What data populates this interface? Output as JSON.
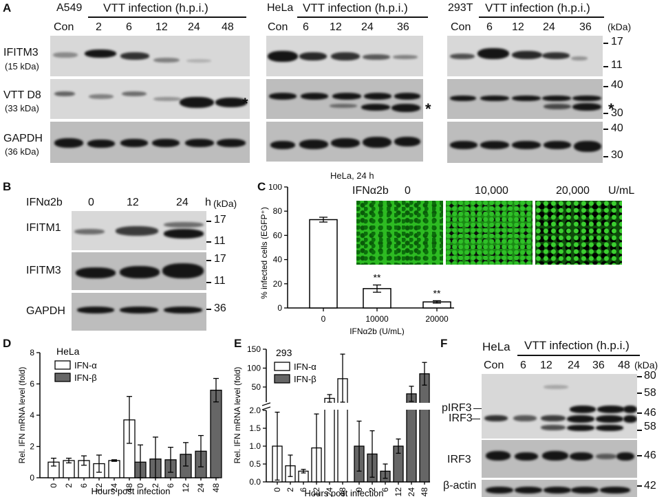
{
  "panel_letters": [
    "A",
    "B",
    "C",
    "D",
    "E",
    "F"
  ],
  "panelA": {
    "groups": [
      {
        "cell": "A549",
        "header": "VTT infection (h.p.i.)",
        "lanes": [
          "Con",
          "2",
          "6",
          "12",
          "24",
          "48"
        ]
      },
      {
        "cell": "HeLa",
        "header": "VTT infection (h.p.i.)",
        "lanes": [
          "Con",
          "6",
          "12",
          "24",
          "36"
        ]
      },
      {
        "cell": "293T",
        "header": "VTT infection (h.p.i.)",
        "lanes": [
          "Con",
          "6",
          "12",
          "24",
          "36"
        ]
      }
    ],
    "kda_unit": "(kDa)",
    "rows": [
      {
        "name": "IFITM3",
        "size": "(15 kDa)"
      },
      {
        "name": "VTT D8",
        "size": "(33 kDa)"
      },
      {
        "name": "GAPDH",
        "size": "(36 kDa)"
      }
    ],
    "markers": [
      "17",
      "11",
      "40",
      "30",
      "40",
      "30"
    ],
    "asterisk": "*"
  },
  "panelB": {
    "treatment": "IFNα2b",
    "lanes": [
      "0",
      "12",
      "24"
    ],
    "unit": "h",
    "kda_unit": "(kDa)",
    "rows": [
      "IFITM1",
      "IFITM3",
      "GAPDH"
    ],
    "markers": [
      "17",
      "11",
      "17",
      "11",
      "36"
    ]
  },
  "panelC": {
    "title": "HeLa, 24 h",
    "ylabel": "% infected cells (EGFP⁺)",
    "xlabel": "IFNα2b (U/mL)",
    "image_header_label": "IFNα2b",
    "image_doses": [
      "0",
      "10,000",
      "20,000"
    ],
    "image_unit": "U/mL",
    "sig": [
      "**",
      "**"
    ],
    "ytick_labels": [
      "0",
      "20",
      "40",
      "60",
      "80",
      "100"
    ]
  },
  "panelD": {
    "cell": "HeLa",
    "ylabel": "Rel. IFN mRNA level (fold)",
    "xlabel": "Hours post infection",
    "legend": [
      "IFN-α",
      "IFN-β"
    ],
    "ytick_labels": [
      "0",
      "2",
      "4",
      "6",
      "8"
    ],
    "xtick_labels": [
      "0",
      "2",
      "6",
      "12",
      "24",
      "48"
    ]
  },
  "panelE": {
    "cell": "293",
    "ylabel": "Rel. IFN mRNA level (fold)",
    "xlabel": "Hours post infection",
    "legend": [
      "IFN-α",
      "IFN-β"
    ],
    "ytick_labels_upper": [
      "50",
      "100",
      "150"
    ],
    "ytick_labels_lower": [
      "0.0",
      "0.5",
      "1.0",
      "1.5",
      "2.0"
    ],
    "xtick_labels": [
      "0",
      "2",
      "6",
      "12",
      "24",
      "48"
    ]
  },
  "panelF": {
    "cell": "HeLa",
    "header": "VTT infection (h.p.i.)",
    "lanes": [
      "Con",
      "6",
      "12",
      "24",
      "36",
      "48"
    ],
    "kda_unit": "(kDa)",
    "rows": [
      "pIRF3",
      "IRF3",
      "IRF3",
      "β-actin"
    ],
    "markers": [
      "80",
      "58",
      "46",
      "58",
      "46",
      "42"
    ]
  },
  "chart_data": [
    {
      "type": "bar",
      "categories": [
        "0",
        "10000",
        "20000"
      ],
      "values": [
        73,
        16,
        5
      ],
      "errors": [
        2,
        3,
        1
      ],
      "ylim": [
        0,
        100
      ],
      "ylabel": "% infected cells (EGFP⁺)",
      "xlabel": "IFNα2b (U/mL)",
      "title": "HeLa, 24 h",
      "colors": {
        "bar": "#ffffff",
        "edge": "#000000"
      }
    },
    {
      "type": "bar",
      "categories": [
        "0",
        "2",
        "6",
        "12",
        "24",
        "48"
      ],
      "series": [
        {
          "name": "IFN-α",
          "values": [
            1.0,
            1.1,
            1.1,
            0.9,
            1.1,
            3.7
          ],
          "errors": [
            0.25,
            0.15,
            0.3,
            0.55,
            0.05,
            1.5
          ]
        },
        {
          "name": "IFN-β",
          "values": [
            1.0,
            1.2,
            1.15,
            1.5,
            1.7,
            5.6
          ],
          "errors": [
            1.1,
            1.4,
            0.8,
            0.75,
            1.0,
            0.75
          ]
        }
      ],
      "ylim": [
        0,
        8
      ],
      "ylabel": "Rel. IFN mRNA level (fold)",
      "xlabel": "Hours post infection",
      "colors": {
        "IFN-α": "#ffffff",
        "IFN-β": "#666666"
      }
    },
    {
      "type": "bar",
      "categories": [
        "0",
        "2",
        "6",
        "12",
        "24",
        "48"
      ],
      "series": [
        {
          "name": "IFN-α",
          "values": [
            1.0,
            0.45,
            0.3,
            0.95,
            20,
            72
          ],
          "errors": [
            0.95,
            0.3,
            0.05,
            0.95,
            10,
            65
          ]
        },
        {
          "name": "IFN-β",
          "values": [
            1.0,
            0.78,
            0.3,
            1.0,
            32,
            85
          ],
          "errors": [
            0.7,
            0.65,
            0.2,
            0.2,
            20,
            30
          ]
        }
      ],
      "broken_axis": {
        "lower": [
          0,
          2
        ],
        "upper": [
          2,
          150
        ]
      },
      "ylabel": "Rel. IFN mRNA level (fold)",
      "xlabel": "Hours post infection",
      "colors": {
        "IFN-α": "#ffffff",
        "IFN-β": "#666666"
      }
    }
  ]
}
